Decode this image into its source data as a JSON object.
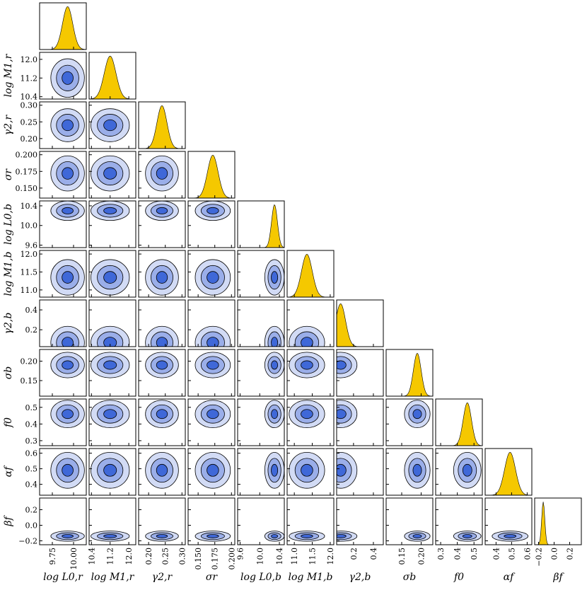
{
  "chart_data": {
    "type": "corner",
    "hist_color": "#f5c800",
    "contour_colors": [
      "#d2dbf5",
      "#9aaee9",
      "#3f68d8"
    ],
    "params": [
      {
        "label": "log L0,r",
        "lim": [
          9.6,
          10.15
        ],
        "ticks": [
          9.75,
          {
            "value": 10,
            "label": "10.00"
          }
        ],
        "center": 9.93,
        "spread": 0.06
      },
      {
        "label": "log M1,r",
        "lim": [
          10.3,
          12.3
        ],
        "ticks": [
          10.4,
          11.2,
          {
            "value": 12,
            "label": "12.0"
          }
        ],
        "center": 11.2,
        "spread": 0.25
      },
      {
        "label": "γ2,r",
        "lim": [
          0.17,
          0.31
        ],
        "ticks": [
          {
            "value": 0.2,
            "label": "0.20"
          },
          0.25,
          {
            "value": 0.3,
            "label": "0.30"
          }
        ],
        "center": 0.24,
        "spread": 0.015
      },
      {
        "label": "σr",
        "lim": [
          0.135,
          0.205
        ],
        "ticks": [
          {
            "value": 0.15,
            "label": "0.150"
          },
          0.175,
          {
            "value": 0.2,
            "label": "0.200"
          }
        ],
        "center": 0.172,
        "spread": 0.008
      },
      {
        "label": "log L0,b",
        "lim": [
          9.55,
          10.5
        ],
        "ticks": [
          9.6,
          {
            "value": 10,
            "label": "10.0"
          },
          10.4
        ],
        "center": 10.3,
        "spread": 0.06
      },
      {
        "label": "log M1,b",
        "lim": [
          10.8,
          12.1
        ],
        "ticks": [
          {
            "value": 11,
            "label": "11.0"
          },
          11.5,
          {
            "value": 12,
            "label": "12.0"
          }
        ],
        "center": 11.35,
        "spread": 0.15
      },
      {
        "label": "γ2,b",
        "lim": [
          0.03,
          0.5
        ],
        "ticks": [
          0.2,
          0.4
        ],
        "center": 0.07,
        "spread": 0.05
      },
      {
        "label": "σb",
        "lim": [
          0.11,
          0.23
        ],
        "ticks": [
          0.15,
          {
            "value": 0.2,
            "label": "0.20"
          }
        ],
        "center": 0.19,
        "spread": 0.01
      },
      {
        "label": "f0",
        "lim": [
          0.27,
          0.55
        ],
        "ticks": [
          0.3,
          0.4,
          0.5
        ],
        "center": 0.46,
        "spread": 0.025
      },
      {
        "label": "αf",
        "lim": [
          0.33,
          0.63
        ],
        "ticks": [
          0.4,
          0.5,
          0.6
        ],
        "center": 0.49,
        "spread": 0.035
      },
      {
        "label": "βf",
        "lim": [
          -0.25,
          0.35
        ],
        "ticks": [
          {
            "value": -0.2,
            "label": "−0.2"
          },
          {
            "value": 0,
            "label": "0.0"
          },
          0.2
        ],
        "center": -0.14,
        "spread": 0.02
      }
    ]
  }
}
